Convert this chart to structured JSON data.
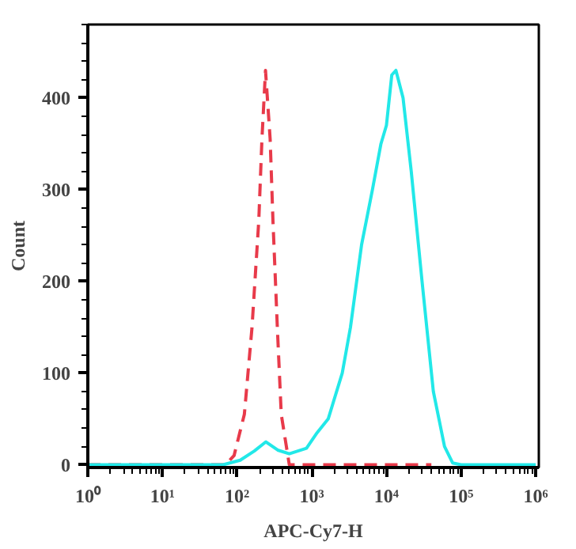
{
  "chart_data": {
    "type": "line",
    "xlabel": "APC-Cy7-H",
    "ylabel": "Count",
    "log": "x",
    "grid": false,
    "marker": "none",
    "xlim": [
      1,
      1100000
    ],
    "ylim": [
      -3,
      480
    ],
    "xticks": [
      {
        "value": 1,
        "label": "10⁰"
      },
      {
        "value": 10,
        "label": "10¹"
      },
      {
        "value": 100,
        "label": "10²"
      },
      {
        "value": 1000,
        "label": "10³"
      },
      {
        "value": 10000,
        "label": "10⁴"
      },
      {
        "value": 100000,
        "label": "10⁵"
      },
      {
        "value": 1000000,
        "label": "10⁶"
      }
    ],
    "yticks": [
      0,
      100,
      200,
      300,
      400
    ],
    "series": [
      {
        "color": "#e83a4a",
        "line_style": "dashed",
        "x": [
          1,
          50,
          70,
          91,
          125,
          158,
          195,
          215,
          240,
          277,
          302,
          346,
          390,
          500,
          1000,
          40000
        ],
        "values": [
          0,
          0,
          0,
          10,
          55,
          149,
          266,
          355,
          430,
          355,
          266,
          149,
          55,
          0,
          0,
          0
        ]
      },
      {
        "color": "#22e8e8",
        "line_style": "solid",
        "x": [
          1,
          30,
          65,
          110,
          170,
          243,
          350,
          500,
          850,
          1180,
          1660,
          2560,
          3300,
          4650,
          6500,
          8450,
          10000,
          11800,
          13400,
          16700,
          21500,
          30000,
          42500,
          60000,
          77000,
          100000,
          1000000
        ],
        "values": [
          0,
          0,
          0,
          5,
          15,
          25,
          16,
          12,
          18,
          35,
          50,
          100,
          150,
          240,
          300,
          350,
          370,
          425,
          430,
          400,
          320,
          200,
          80,
          20,
          2,
          0,
          0
        ]
      }
    ]
  }
}
